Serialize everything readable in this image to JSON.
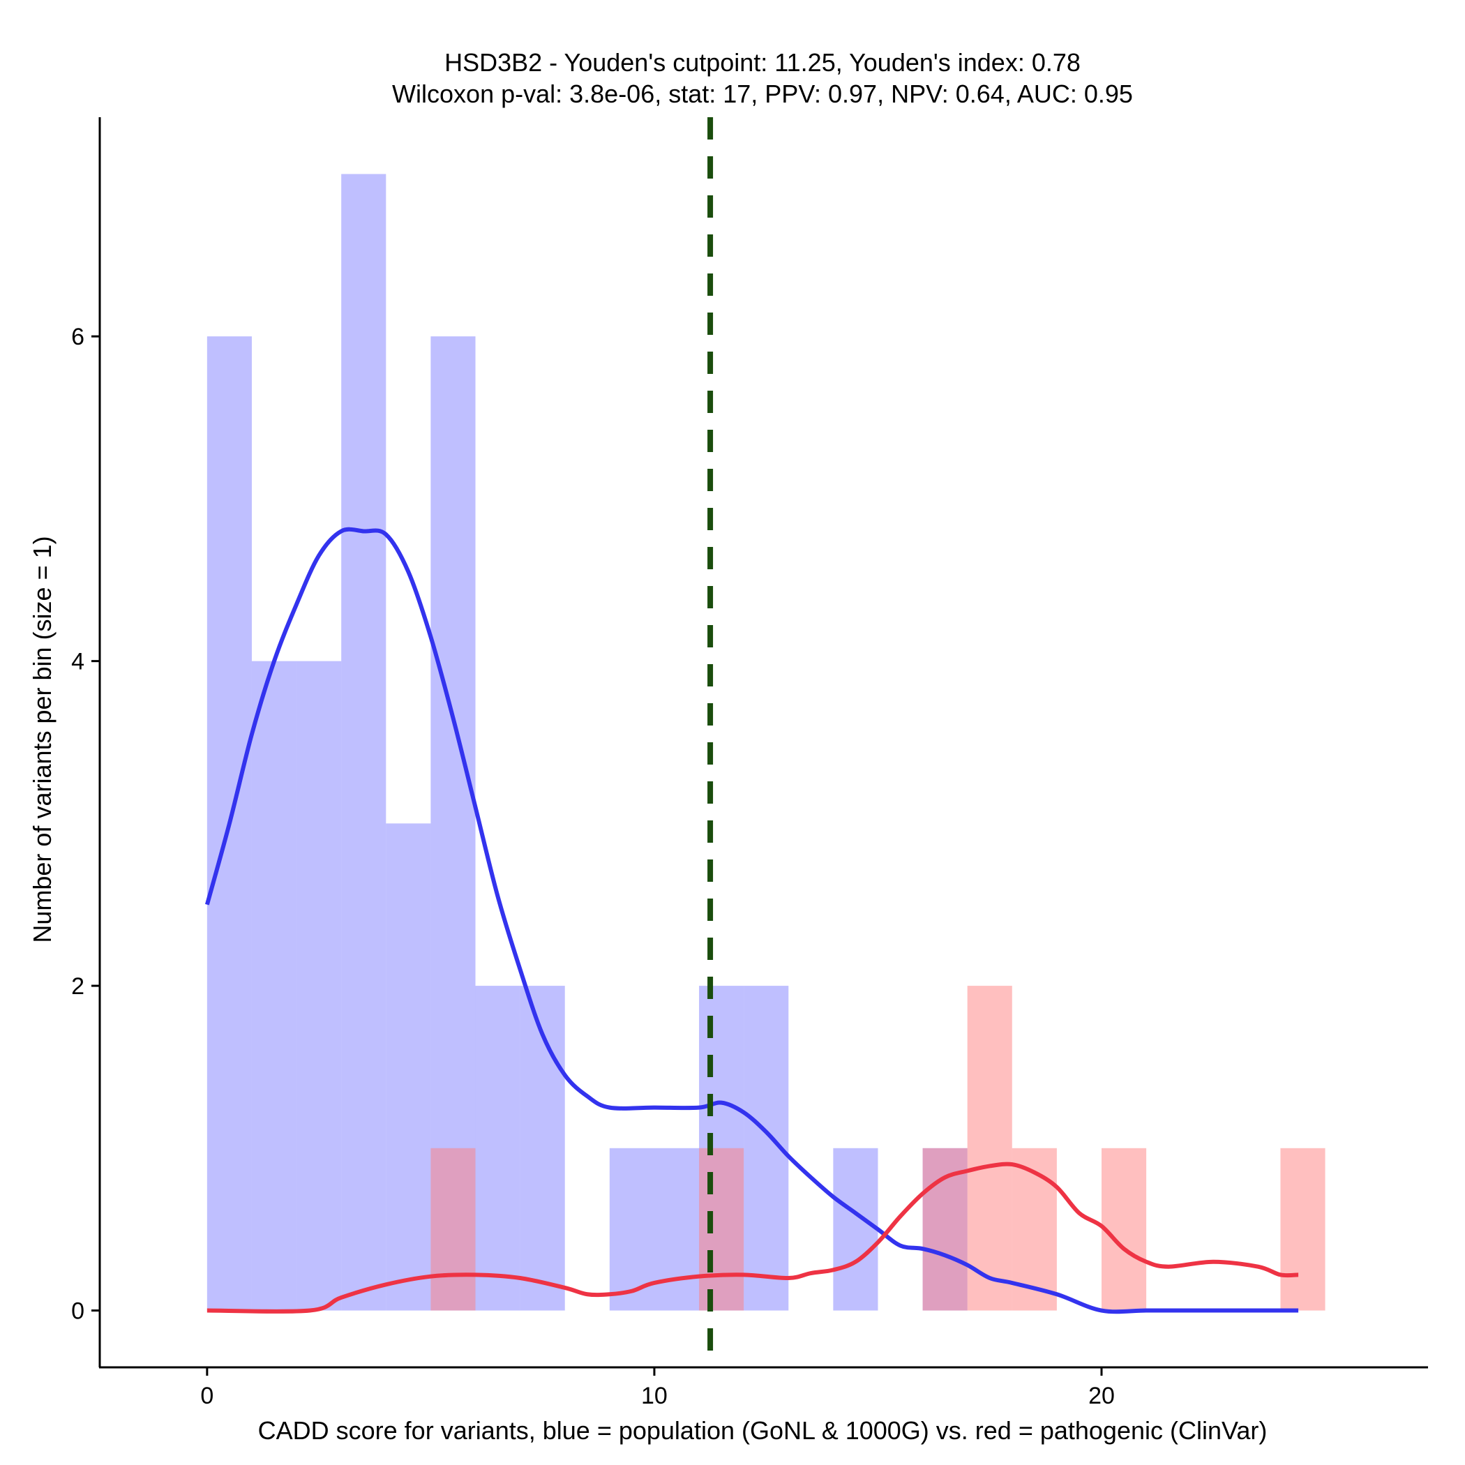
{
  "chart_data": {
    "type": "histogram-density",
    "title_line1": "HSD3B2 - Youden's cutpoint: 11.25, Youden's index: 0.78",
    "title_line2": "Wilcoxon p-val: 3.8e-06, stat: 17, PPV: 0.97, NPV: 0.64, AUC: 0.95",
    "xlabel": "CADD score for variants, blue = population (GoNL & 1000G) vs. red = pathogenic (ClinVar)",
    "ylabel": "Number of variants per bin (size = 1)",
    "xlim": [
      -2.4,
      27.3
    ],
    "ylim": [
      -0.35,
      7.35
    ],
    "x_ticks": [
      0,
      10,
      20
    ],
    "y_ticks": [
      0,
      2,
      4,
      6
    ],
    "cutpoint": 11.25,
    "bin_width": 1,
    "series": [
      {
        "name": "population (GoNL & 1000G)",
        "bar_color": "#8080ff",
        "line_color": "#3333ee",
        "bins": [
          {
            "x": 0,
            "count": 6
          },
          {
            "x": 1,
            "count": 4
          },
          {
            "x": 2,
            "count": 4
          },
          {
            "x": 3,
            "count": 7
          },
          {
            "x": 4,
            "count": 3
          },
          {
            "x": 5,
            "count": 6
          },
          {
            "x": 6,
            "count": 2
          },
          {
            "x": 7,
            "count": 2
          },
          {
            "x": 9,
            "count": 1
          },
          {
            "x": 10,
            "count": 1
          },
          {
            "x": 11,
            "count": 2
          },
          {
            "x": 12,
            "count": 2
          },
          {
            "x": 14,
            "count": 1
          },
          {
            "x": 16,
            "count": 1
          }
        ],
        "density": [
          [
            0,
            2.5
          ],
          [
            0.5,
            3.0
          ],
          [
            1,
            3.55
          ],
          [
            1.5,
            4.0
          ],
          [
            2,
            4.35
          ],
          [
            2.5,
            4.65
          ],
          [
            3,
            4.8
          ],
          [
            3.5,
            4.8
          ],
          [
            4,
            4.78
          ],
          [
            4.5,
            4.55
          ],
          [
            5,
            4.15
          ],
          [
            5.5,
            3.65
          ],
          [
            6,
            3.1
          ],
          [
            6.5,
            2.55
          ],
          [
            7,
            2.1
          ],
          [
            7.5,
            1.7
          ],
          [
            8,
            1.45
          ],
          [
            8.5,
            1.32
          ],
          [
            9,
            1.25
          ],
          [
            10,
            1.25
          ],
          [
            11,
            1.25
          ],
          [
            11.5,
            1.28
          ],
          [
            12,
            1.22
          ],
          [
            12.5,
            1.1
          ],
          [
            13,
            0.95
          ],
          [
            13.5,
            0.82
          ],
          [
            14,
            0.7
          ],
          [
            14.5,
            0.6
          ],
          [
            15,
            0.5
          ],
          [
            15.5,
            0.4
          ],
          [
            16,
            0.38
          ],
          [
            16.5,
            0.34
          ],
          [
            17,
            0.28
          ],
          [
            17.5,
            0.2
          ],
          [
            18,
            0.17
          ],
          [
            19,
            0.1
          ],
          [
            20,
            0.0
          ],
          [
            21,
            0.0
          ],
          [
            22,
            0.0
          ],
          [
            23,
            0.0
          ],
          [
            24,
            0.0
          ],
          [
            24.4,
            0.0
          ]
        ]
      },
      {
        "name": "pathogenic (ClinVar)",
        "bar_color": "#ff8080",
        "line_color": "#ee3344",
        "bins": [
          {
            "x": 5,
            "count": 1
          },
          {
            "x": 11,
            "count": 1
          },
          {
            "x": 16,
            "count": 1
          },
          {
            "x": 17,
            "count": 2
          },
          {
            "x": 18,
            "count": 1
          },
          {
            "x": 20,
            "count": 1
          },
          {
            "x": 24,
            "count": 1
          }
        ],
        "density": [
          [
            0,
            0.0
          ],
          [
            2.3,
            0.0
          ],
          [
            3,
            0.08
          ],
          [
            4,
            0.16
          ],
          [
            5,
            0.21
          ],
          [
            6,
            0.22
          ],
          [
            7,
            0.2
          ],
          [
            8,
            0.14
          ],
          [
            8.5,
            0.1
          ],
          [
            9,
            0.1
          ],
          [
            9.5,
            0.12
          ],
          [
            10,
            0.17
          ],
          [
            11,
            0.21
          ],
          [
            12,
            0.22
          ],
          [
            13,
            0.2
          ],
          [
            13.5,
            0.23
          ],
          [
            14,
            0.25
          ],
          [
            14.5,
            0.3
          ],
          [
            15,
            0.42
          ],
          [
            15.5,
            0.58
          ],
          [
            16,
            0.72
          ],
          [
            16.5,
            0.82
          ],
          [
            17,
            0.86
          ],
          [
            17.5,
            0.89
          ],
          [
            18,
            0.9
          ],
          [
            18.5,
            0.85
          ],
          [
            19,
            0.76
          ],
          [
            19.5,
            0.6
          ],
          [
            20,
            0.52
          ],
          [
            20.5,
            0.38
          ],
          [
            21,
            0.3
          ],
          [
            21.5,
            0.27
          ],
          [
            22.5,
            0.3
          ],
          [
            23.5,
            0.27
          ],
          [
            24,
            0.22
          ],
          [
            24.4,
            0.22
          ]
        ]
      }
    ]
  }
}
